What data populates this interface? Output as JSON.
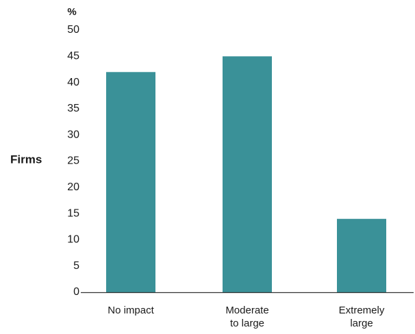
{
  "chart_data": {
    "type": "bar",
    "categories": [
      [
        "No impact"
      ],
      [
        "Moderate",
        "to large"
      ],
      [
        "Extremely",
        "large"
      ]
    ],
    "values": [
      42,
      45,
      14
    ],
    "ylabel": "Firms",
    "yunit": "%",
    "ylim": [
      0,
      50
    ],
    "yticks": [
      0,
      5,
      10,
      15,
      20,
      25,
      30,
      35,
      40,
      45,
      50
    ],
    "grid": false,
    "bar_color": "#3a9198",
    "axis_color": "#333333"
  }
}
